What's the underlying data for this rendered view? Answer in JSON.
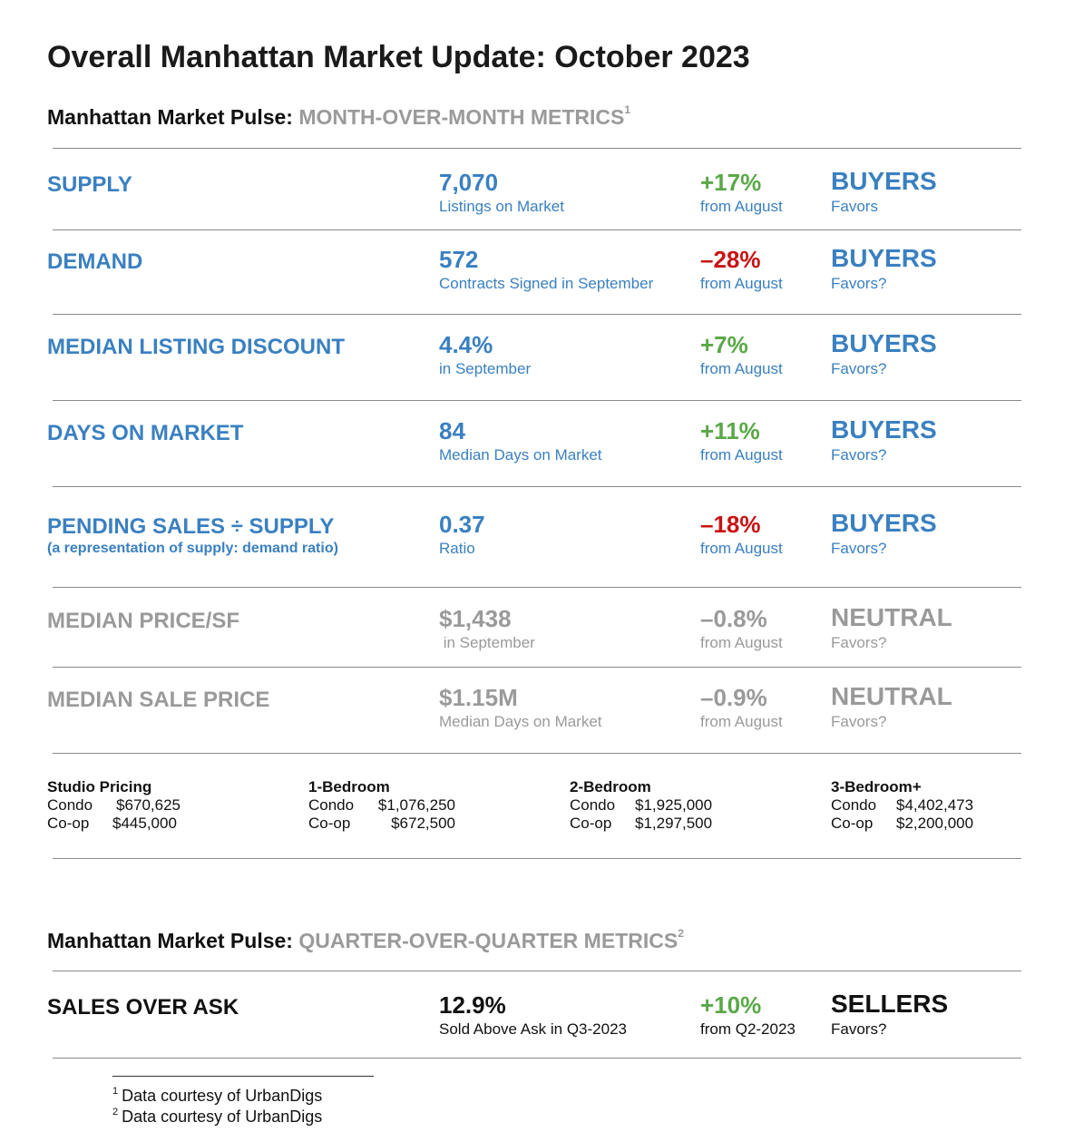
{
  "title": "Overall Manhattan Market Update: October 2023",
  "mom": {
    "head_black": "Manhattan Market Pulse:",
    "head_grey": "MONTH-OVER-MONTH METRICS",
    "head_sup": "1"
  },
  "rows": [
    {
      "label": "SUPPLY",
      "value": "7,070",
      "value_sub": "Listings on Market",
      "change": "+17%",
      "change_sub": "from August",
      "favor": "BUYERS",
      "favor_sub": "Favors"
    },
    {
      "label": "DEMAND",
      "value": "572",
      "value_sub": "Contracts Signed  in September",
      "change": "–28%",
      "change_sub": "from August",
      "favor": "BUYERS",
      "favor_sub": "Favors?"
    },
    {
      "label": "MEDIAN LISTING DISCOUNT",
      "value": "4.4%",
      "value_sub": "in September",
      "change": "+7%",
      "change_sub": "from August",
      "favor": "BUYERS",
      "favor_sub": "Favors?"
    },
    {
      "label": "DAYS ON MARKET",
      "value": "84",
      "value_sub": "Median Days on Market",
      "change": "+11%",
      "change_sub": "from August",
      "favor": "BUYERS",
      "favor_sub": "Favors?"
    },
    {
      "label": "PENDING SALES ÷ SUPPLY",
      "label_sub": "(a representation of supply: demand ratio)",
      "value": "0.37",
      "value_sub": "Ratio",
      "change": "–18%",
      "change_sub": "from August",
      "favor": "BUYERS",
      "favor_sub": "Favors?"
    },
    {
      "label": "MEDIAN PRICE/SF",
      "value": "$1,438",
      "value_sub": " in September",
      "change": "–0.8%",
      "change_sub": "from August",
      "favor": "NEUTRAL",
      "favor_sub": "Favors?"
    },
    {
      "label": "MEDIAN SALE PRICE",
      "value": "$1.15M",
      "value_sub": "Median Days on Market",
      "change": "–0.9%",
      "change_sub": "from August",
      "favor": "NEUTRAL",
      "favor_sub": "Favors?"
    }
  ],
  "pricing": [
    {
      "heading": "Studio Pricing",
      "condo_label": "Condo",
      "condo": "$670,625",
      "coop_label": "Co-op",
      "coop": "$445,000"
    },
    {
      "heading": "1-Bedroom",
      "condo_label": "Condo",
      "condo": "$1,076,250",
      "coop_label": "Co-op",
      "coop": "$672,500"
    },
    {
      "heading": "2-Bedroom",
      "condo_label": "Condo",
      "condo": "$1,925,000",
      "coop_label": "Co-op",
      "coop": "$1,297,500"
    },
    {
      "heading": "3-Bedroom+",
      "condo_label": "Condo",
      "condo": "$4,402,473",
      "coop_label": "Co-op",
      "coop": "$2,200,000"
    }
  ],
  "qoq": {
    "head_black": "Manhattan Market Pulse:",
    "head_grey": "QUARTER-OVER-QUARTER METRICS",
    "head_sup": "2",
    "row": {
      "label": "SALES OVER ASK",
      "value": "12.9%",
      "value_sub": "Sold Above Ask in Q3-2023",
      "change": "+10%",
      "change_sub": "from Q2-2023",
      "favor": "SELLERS",
      "favor_sub": "Favors?"
    }
  },
  "footnotes": [
    {
      "num": "1",
      "text": "Data courtesy of UrbanDigs"
    },
    {
      "num": "2",
      "text": "Data courtesy of UrbanDigs"
    }
  ],
  "colors": {
    "blue": "#3a80c1",
    "green": "#5aa848",
    "red": "#c81414",
    "grey": "#9a9a9a",
    "black": "#111111"
  }
}
